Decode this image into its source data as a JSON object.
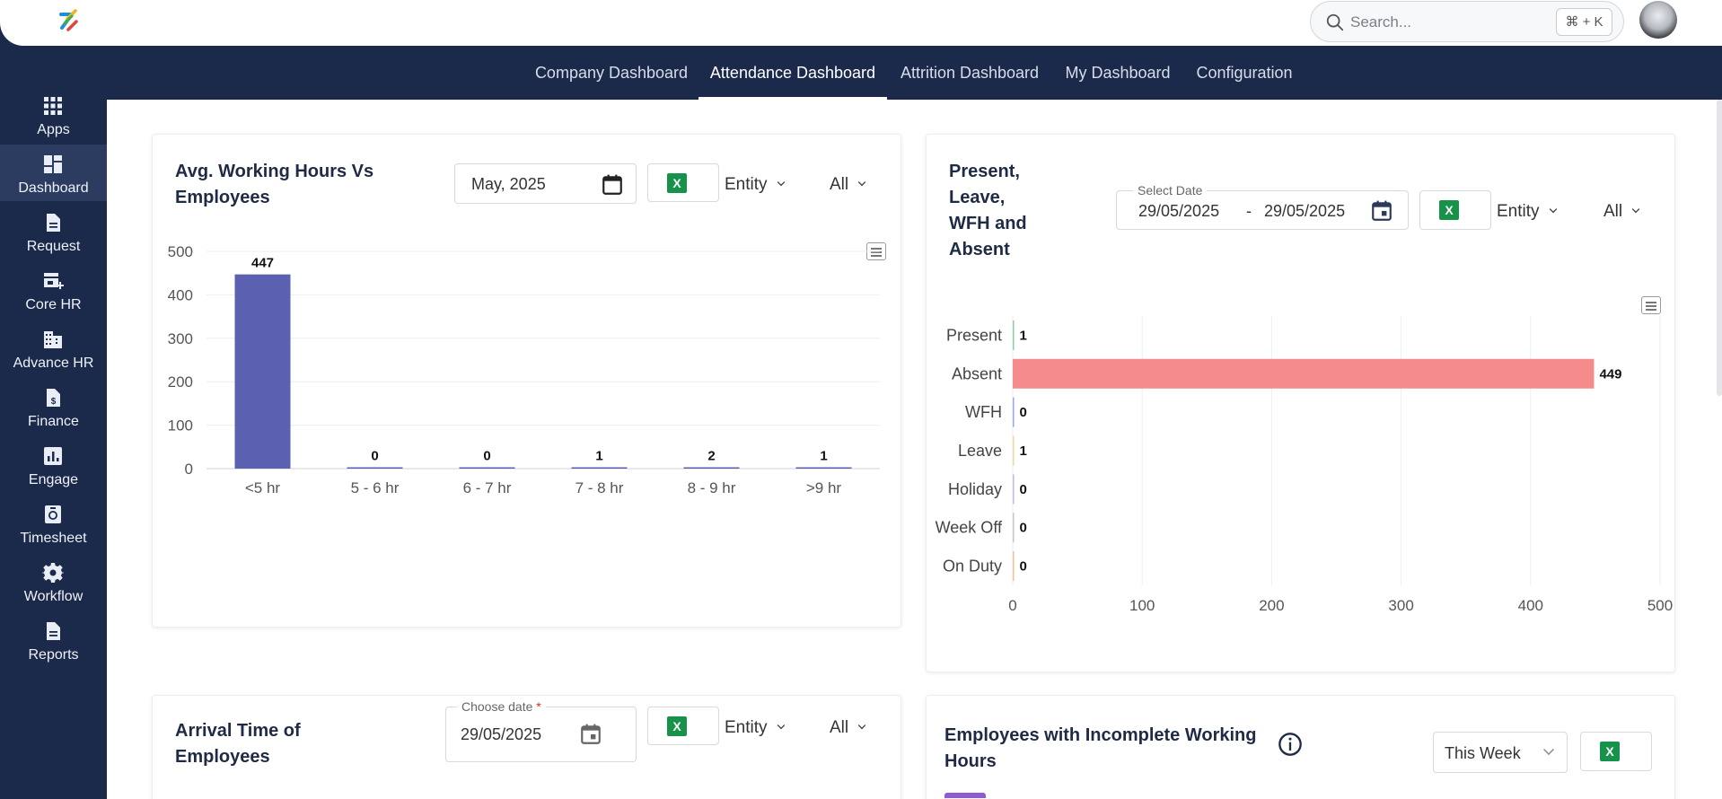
{
  "header": {
    "search_placeholder": "Search...",
    "search_shortcut": "⌘ + K"
  },
  "tabs": [
    {
      "label": "Company Dashboard",
      "active": false
    },
    {
      "label": "Attendance Dashboard",
      "active": true
    },
    {
      "label": "Attrition Dashboard",
      "active": false
    },
    {
      "label": "My Dashboard",
      "active": false
    },
    {
      "label": "Configuration",
      "active": false
    }
  ],
  "sidebar": {
    "items": [
      {
        "label": "Apps",
        "icon": "apps-grid-icon",
        "active": false
      },
      {
        "label": "Dashboard",
        "icon": "dashboard-icon",
        "active": true
      },
      {
        "label": "Request",
        "icon": "document-icon",
        "active": false
      },
      {
        "label": "Core HR",
        "icon": "store-icon",
        "active": false
      },
      {
        "label": "Advance HR",
        "icon": "building-icon",
        "active": false
      },
      {
        "label": "Finance",
        "icon": "finance-document-icon",
        "active": false
      },
      {
        "label": "Engage",
        "icon": "bar-chart-icon",
        "active": false
      },
      {
        "label": "Timesheet",
        "icon": "timesheet-icon",
        "active": false
      },
      {
        "label": "Workflow",
        "icon": "gear-icon",
        "active": false
      },
      {
        "label": "Reports",
        "icon": "report-document-icon",
        "active": false
      }
    ]
  },
  "cards": {
    "avg_hours": {
      "title_line1": "Avg. Working Hours Vs",
      "title_line2": "Employees",
      "month_value": "May, 2025",
      "excel_label": "X",
      "entity_label": "Entity",
      "filter_label": "All"
    },
    "present_leave": {
      "title_lines": [
        "Present,",
        "Leave,",
        "WFH and",
        "Absent"
      ],
      "date_label": "Select Date",
      "date_from": "29/05/2025",
      "date_sep": "-",
      "date_to": "29/05/2025",
      "excel_label": "X",
      "entity_label": "Entity",
      "filter_label": "All"
    },
    "arrival": {
      "title_line1": "Arrival Time of",
      "title_line2": "Employees",
      "date_label": "Choose date",
      "date_required": "*",
      "date_value": "29/05/2025",
      "excel_label": "X",
      "entity_label": "Entity",
      "filter_label": "All"
    },
    "incomplete": {
      "title_line1": "Employees with Incomplete Working",
      "title_line2": "Hours",
      "period_value": "This Week",
      "excel_label": "X"
    }
  },
  "chart_data": [
    {
      "type": "bar",
      "categories": [
        "<5 hr",
        "5 - 6 hr",
        "6 - 7 hr",
        "7 - 8 hr",
        "8 - 9 hr",
        ">9 hr"
      ],
      "values": [
        447,
        0,
        0,
        1,
        2,
        1
      ],
      "ylim": [
        0,
        500
      ],
      "yticks": [
        0,
        100,
        200,
        300,
        400,
        500
      ],
      "color": "#5b60b1",
      "grid": true,
      "data_labels": true
    },
    {
      "type": "bar",
      "orientation": "horizontal",
      "categories": [
        "Present",
        "Absent",
        "WFH",
        "Leave",
        "Holiday",
        "Week Off",
        "On Duty"
      ],
      "values": [
        1,
        449,
        0,
        1,
        0,
        0,
        0
      ],
      "colors": [
        "#8fcf9f",
        "#f48c8c",
        "#9aa6f0",
        "#f0d9a0",
        "#c9b6e4",
        "#c7c7c7",
        "#e8c59a"
      ],
      "xlim": [
        0,
        500
      ],
      "xticks": [
        0,
        100,
        200,
        300,
        400,
        500
      ],
      "grid": true,
      "data_labels": true
    }
  ]
}
